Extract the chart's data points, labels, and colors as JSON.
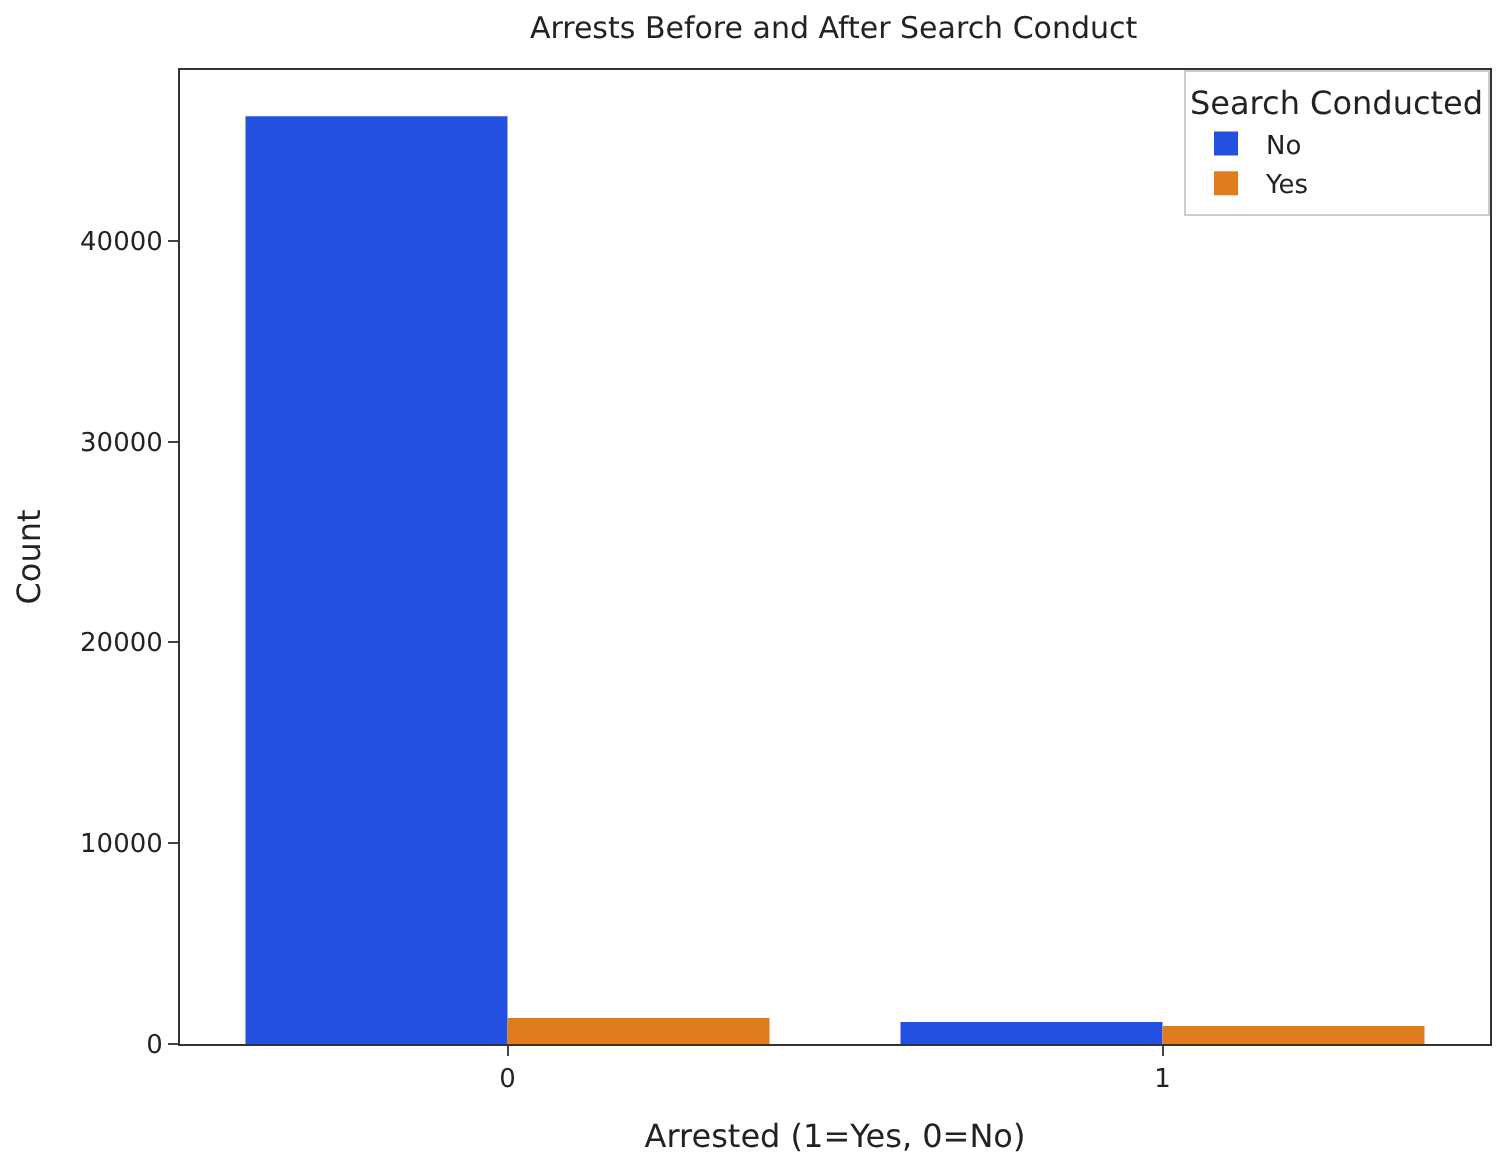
{
  "chart_data": {
    "type": "bar",
    "title": "Arrests Before and After Search Conduct",
    "xlabel": "Arrested (1=Yes, 0=No)",
    "ylabel": "Count",
    "legend_title": "Search Conducted",
    "categories": [
      "0",
      "1"
    ],
    "series": [
      {
        "name": "No",
        "color": "#2350e0",
        "values": [
          46200,
          1100
        ]
      },
      {
        "name": "Yes",
        "color": "#e07b1e",
        "values": [
          1300,
          900
        ]
      }
    ],
    "ylim": [
      0,
      48500
    ],
    "yticks": [
      0,
      10000,
      20000,
      30000,
      40000
    ],
    "legend": "top right"
  }
}
